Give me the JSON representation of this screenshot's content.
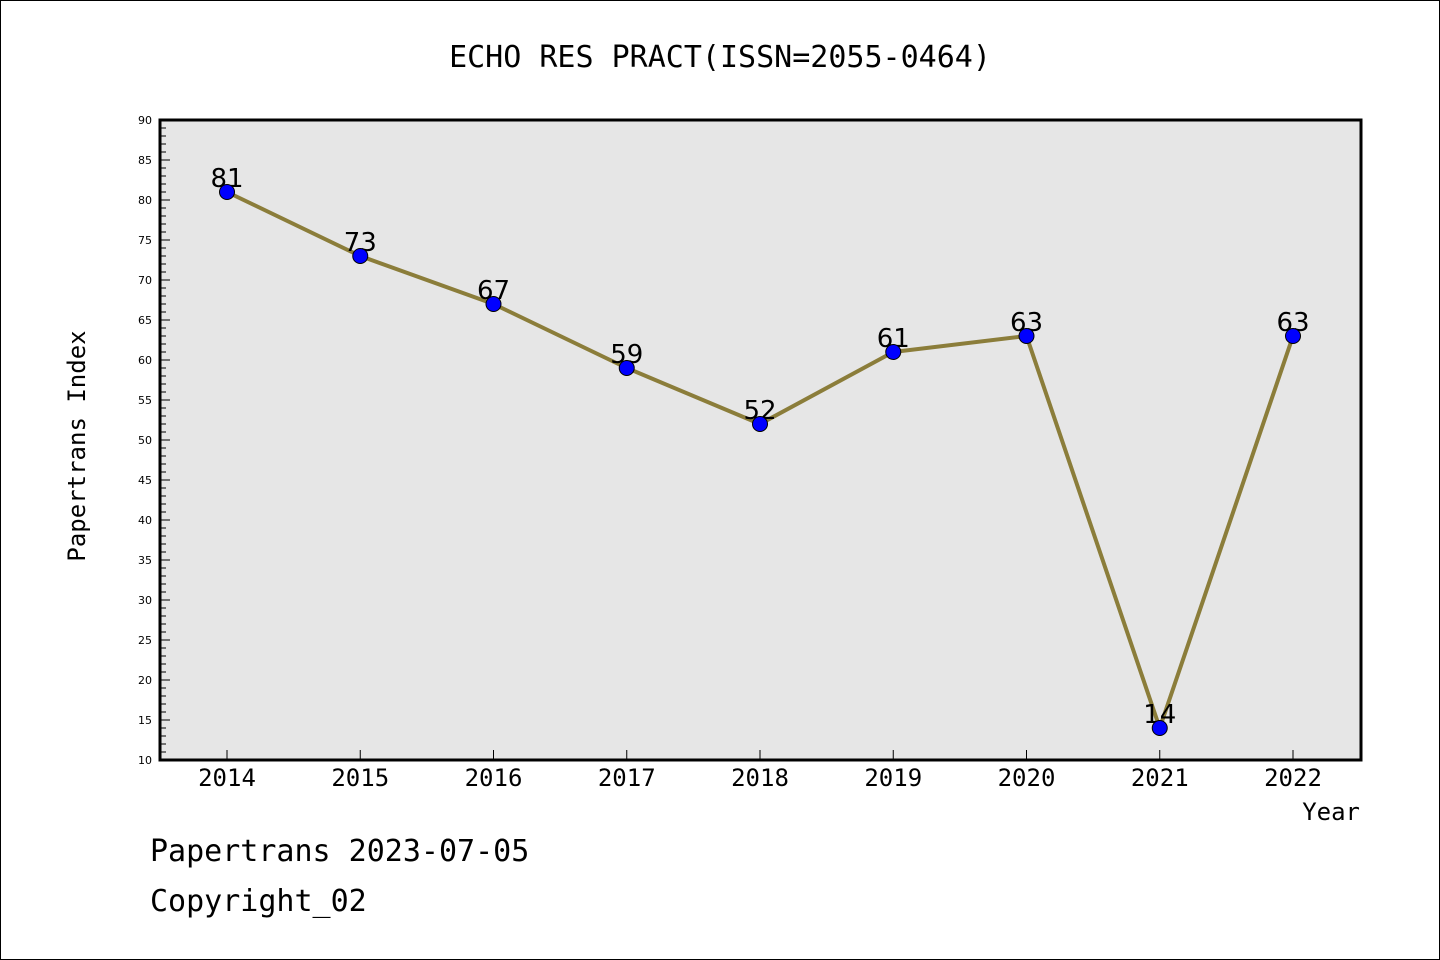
{
  "chart_data": {
    "type": "line",
    "title": "ECHO RES PRACT(ISSN=2055-0464)",
    "xlabel": "Year",
    "ylabel": "Papertrans Index",
    "x": [
      "2014",
      "2015",
      "2016",
      "2017",
      "2018",
      "2019",
      "2020",
      "2021",
      "2022"
    ],
    "series": [
      {
        "values": [
          81,
          73,
          67,
          59,
          52,
          61,
          63,
          14,
          63
        ]
      }
    ],
    "data_labels": [
      "81",
      "73",
      "67",
      "59",
      "52",
      "61",
      "63",
      "14",
      "63"
    ],
    "ylim": [
      10,
      90
    ],
    "yticks": [
      "10",
      "15",
      "20",
      "25",
      "30",
      "35",
      "40",
      "45",
      "50",
      "55",
      "60",
      "65",
      "70",
      "75",
      "80",
      "85",
      "90"
    ],
    "grid": false,
    "legend": "none",
    "colors": {
      "line": "#8b7d3a",
      "marker": "#0000ff",
      "plot_background": "#e6e6e6"
    }
  },
  "footer": {
    "line1": "Papertrans 2023-07-05",
    "line2": "Copyright_02"
  }
}
